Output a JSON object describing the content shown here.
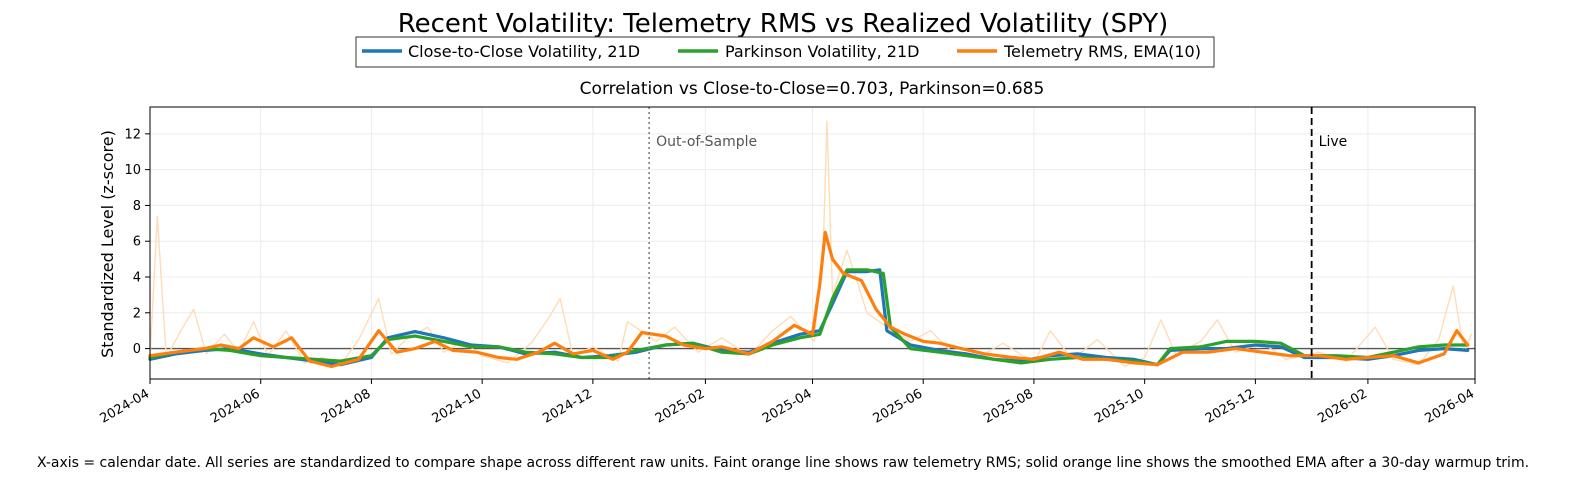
{
  "chart_data": {
    "type": "line",
    "title": "Recent Volatility: Telemetry RMS vs Realized Volatility (SPY)",
    "subtitle": "Correlation vs Close-to-Close=0.703, Parkinson=0.685",
    "ylabel": "Standardized Level (z-score)",
    "xlabel": "",
    "caption": "X-axis = calendar date. All series are standardized to compare shape across different raw units. Faint orange line shows raw telemetry RMS; solid orange line shows the smoothed EMA after a 30-day warmup trim.",
    "xlim": [
      "2024-04-01",
      "2026-04-01"
    ],
    "ylim": [
      -1.7,
      13.5
    ],
    "x_ticks": [
      "2024-04",
      "2024-06",
      "2024-08",
      "2024-10",
      "2024-12",
      "2025-02",
      "2025-04",
      "2025-06",
      "2025-08",
      "2025-10",
      "2025-12",
      "2026-02",
      "2026-04"
    ],
    "y_ticks": [
      0,
      2,
      4,
      6,
      8,
      10,
      12
    ],
    "grid": true,
    "legend_placement": "top-center",
    "legend": [
      {
        "label": "Close-to-Close Volatility, 21D",
        "color": "#1f77b4"
      },
      {
        "label": "Parkinson Volatility, 21D",
        "color": "#2ca02c"
      },
      {
        "label": "Telemetry RMS, EMA(10)",
        "color": "#ff7f0e"
      }
    ],
    "annotations": [
      {
        "label": "Out-of-Sample",
        "x": "2025-01-01",
        "style": "dotted",
        "color": "#7f7f7f"
      },
      {
        "label": "Live",
        "x": "2026-01-01",
        "style": "dashed",
        "color": "#000000"
      }
    ],
    "zero_line": 0,
    "series": [
      {
        "name": "Close-to-Close Volatility, 21D",
        "color": "#1f77b4",
        "points": [
          [
            "2024-04-01",
            -0.6
          ],
          [
            "2024-04-15",
            -0.3
          ],
          [
            "2024-05-01",
            -0.1
          ],
          [
            "2024-05-15",
            0.0
          ],
          [
            "2024-06-01",
            -0.3
          ],
          [
            "2024-06-15",
            -0.5
          ],
          [
            "2024-07-01",
            -0.7
          ],
          [
            "2024-07-15",
            -0.9
          ],
          [
            "2024-08-01",
            -0.5
          ],
          [
            "2024-08-10",
            0.6
          ],
          [
            "2024-08-25",
            0.95
          ],
          [
            "2024-09-10",
            0.6
          ],
          [
            "2024-09-25",
            0.2
          ],
          [
            "2024-10-10",
            0.1
          ],
          [
            "2024-10-25",
            -0.3
          ],
          [
            "2024-11-10",
            -0.2
          ],
          [
            "2024-11-25",
            -0.5
          ],
          [
            "2024-12-10",
            -0.4
          ],
          [
            "2024-12-25",
            -0.2
          ],
          [
            "2025-01-10",
            0.2
          ],
          [
            "2025-01-25",
            0.3
          ],
          [
            "2025-02-10",
            -0.1
          ],
          [
            "2025-02-25",
            -0.2
          ],
          [
            "2025-03-10",
            0.3
          ],
          [
            "2025-03-25",
            0.8
          ],
          [
            "2025-04-05",
            1.0
          ],
          [
            "2025-04-12",
            2.5
          ],
          [
            "2025-04-20",
            4.3
          ],
          [
            "2025-05-01",
            4.3
          ],
          [
            "2025-05-08",
            4.4
          ],
          [
            "2025-05-12",
            1.0
          ],
          [
            "2025-05-25",
            0.2
          ],
          [
            "2025-06-10",
            -0.1
          ],
          [
            "2025-06-25",
            -0.3
          ],
          [
            "2025-07-10",
            -0.6
          ],
          [
            "2025-07-25",
            -0.7
          ],
          [
            "2025-08-10",
            -0.4
          ],
          [
            "2025-08-25",
            -0.3
          ],
          [
            "2025-09-10",
            -0.5
          ],
          [
            "2025-09-25",
            -0.6
          ],
          [
            "2025-10-08",
            -0.9
          ],
          [
            "2025-10-15",
            -0.1
          ],
          [
            "2025-11-01",
            0.0
          ],
          [
            "2025-11-15",
            0.0
          ],
          [
            "2025-12-01",
            0.2
          ],
          [
            "2025-12-15",
            0.1
          ],
          [
            "2025-12-28",
            -0.5
          ],
          [
            "2026-01-15",
            -0.5
          ],
          [
            "2026-02-01",
            -0.6
          ],
          [
            "2026-02-15",
            -0.4
          ],
          [
            "2026-03-01",
            -0.1
          ],
          [
            "2026-03-15",
            0.0
          ],
          [
            "2026-03-28",
            -0.1
          ]
        ]
      },
      {
        "name": "Parkinson Volatility, 21D",
        "color": "#2ca02c",
        "points": [
          [
            "2024-04-01",
            -0.5
          ],
          [
            "2024-04-15",
            -0.2
          ],
          [
            "2024-05-01",
            0.0
          ],
          [
            "2024-05-15",
            -0.1
          ],
          [
            "2024-06-01",
            -0.4
          ],
          [
            "2024-06-15",
            -0.5
          ],
          [
            "2024-07-01",
            -0.6
          ],
          [
            "2024-07-15",
            -0.7
          ],
          [
            "2024-08-01",
            -0.4
          ],
          [
            "2024-08-10",
            0.5
          ],
          [
            "2024-08-25",
            0.7
          ],
          [
            "2024-09-10",
            0.4
          ],
          [
            "2024-09-25",
            0.1
          ],
          [
            "2024-10-10",
            0.1
          ],
          [
            "2024-10-25",
            -0.2
          ],
          [
            "2024-11-10",
            -0.3
          ],
          [
            "2024-11-25",
            -0.5
          ],
          [
            "2024-12-10",
            -0.5
          ],
          [
            "2024-12-25",
            -0.1
          ],
          [
            "2025-01-10",
            0.2
          ],
          [
            "2025-01-25",
            0.3
          ],
          [
            "2025-02-10",
            -0.2
          ],
          [
            "2025-02-25",
            -0.3
          ],
          [
            "2025-03-10",
            0.2
          ],
          [
            "2025-03-25",
            0.6
          ],
          [
            "2025-04-05",
            0.8
          ],
          [
            "2025-04-12",
            2.8
          ],
          [
            "2025-04-20",
            4.4
          ],
          [
            "2025-05-01",
            4.4
          ],
          [
            "2025-05-10",
            4.2
          ],
          [
            "2025-05-14",
            1.2
          ],
          [
            "2025-05-25",
            0.0
          ],
          [
            "2025-06-10",
            -0.2
          ],
          [
            "2025-06-25",
            -0.4
          ],
          [
            "2025-07-10",
            -0.6
          ],
          [
            "2025-07-25",
            -0.8
          ],
          [
            "2025-08-10",
            -0.6
          ],
          [
            "2025-08-25",
            -0.5
          ],
          [
            "2025-09-10",
            -0.6
          ],
          [
            "2025-09-25",
            -0.7
          ],
          [
            "2025-10-08",
            -0.9
          ],
          [
            "2025-10-15",
            0.0
          ],
          [
            "2025-11-01",
            0.1
          ],
          [
            "2025-11-15",
            0.4
          ],
          [
            "2025-12-01",
            0.4
          ],
          [
            "2025-12-15",
            0.3
          ],
          [
            "2025-12-28",
            -0.4
          ],
          [
            "2026-01-15",
            -0.4
          ],
          [
            "2026-02-01",
            -0.5
          ],
          [
            "2026-02-15",
            -0.2
          ],
          [
            "2026-03-01",
            0.1
          ],
          [
            "2026-03-15",
            0.2
          ],
          [
            "2026-03-28",
            0.2
          ]
        ]
      },
      {
        "name": "Telemetry RMS, EMA(10)",
        "color": "#ff7f0e",
        "points": [
          [
            "2024-04-01",
            -0.4
          ],
          [
            "2024-04-15",
            -0.2
          ],
          [
            "2024-05-01",
            0.0
          ],
          [
            "2024-05-10",
            0.2
          ],
          [
            "2024-05-20",
            0.0
          ],
          [
            "2024-05-28",
            0.6
          ],
          [
            "2024-06-08",
            0.1
          ],
          [
            "2024-06-18",
            0.6
          ],
          [
            "2024-06-28",
            -0.7
          ],
          [
            "2024-07-10",
            -1.0
          ],
          [
            "2024-07-25",
            -0.6
          ],
          [
            "2024-08-05",
            1.0
          ],
          [
            "2024-08-15",
            -0.2
          ],
          [
            "2024-08-25",
            0.0
          ],
          [
            "2024-09-05",
            0.4
          ],
          [
            "2024-09-15",
            -0.1
          ],
          [
            "2024-09-28",
            -0.2
          ],
          [
            "2024-10-10",
            -0.5
          ],
          [
            "2024-10-20",
            -0.6
          ],
          [
            "2024-11-01",
            -0.2
          ],
          [
            "2024-11-10",
            0.3
          ],
          [
            "2024-11-20",
            -0.3
          ],
          [
            "2024-12-01",
            -0.1
          ],
          [
            "2024-12-12",
            -0.6
          ],
          [
            "2024-12-20",
            -0.2
          ],
          [
            "2024-12-28",
            0.9
          ],
          [
            "2025-01-10",
            0.7
          ],
          [
            "2025-01-20",
            0.2
          ],
          [
            "2025-02-01",
            0.0
          ],
          [
            "2025-02-10",
            0.1
          ],
          [
            "2025-02-25",
            -0.3
          ],
          [
            "2025-03-10",
            0.4
          ],
          [
            "2025-03-22",
            1.3
          ],
          [
            "2025-04-01",
            0.8
          ],
          [
            "2025-04-05",
            3.6
          ],
          [
            "2025-04-08",
            6.5
          ],
          [
            "2025-04-12",
            5.0
          ],
          [
            "2025-04-18",
            4.2
          ],
          [
            "2025-04-28",
            3.8
          ],
          [
            "2025-05-06",
            2.2
          ],
          [
            "2025-05-14",
            1.2
          ],
          [
            "2025-05-22",
            0.8
          ],
          [
            "2025-06-01",
            0.4
          ],
          [
            "2025-06-10",
            0.3
          ],
          [
            "2025-06-22",
            0.0
          ],
          [
            "2025-07-05",
            -0.3
          ],
          [
            "2025-07-20",
            -0.5
          ],
          [
            "2025-08-01",
            -0.6
          ],
          [
            "2025-08-15",
            -0.2
          ],
          [
            "2025-08-28",
            -0.6
          ],
          [
            "2025-09-10",
            -0.6
          ],
          [
            "2025-09-25",
            -0.8
          ],
          [
            "2025-10-08",
            -0.9
          ],
          [
            "2025-10-22",
            -0.2
          ],
          [
            "2025-11-05",
            -0.2
          ],
          [
            "2025-11-20",
            0.0
          ],
          [
            "2025-12-05",
            -0.2
          ],
          [
            "2025-12-20",
            -0.4
          ],
          [
            "2026-01-05",
            -0.4
          ],
          [
            "2026-01-20",
            -0.6
          ],
          [
            "2026-02-01",
            -0.5
          ],
          [
            "2026-02-15",
            -0.4
          ],
          [
            "2026-03-01",
            -0.8
          ],
          [
            "2026-03-15",
            -0.3
          ],
          [
            "2026-03-22",
            1.0
          ],
          [
            "2026-03-28",
            0.2
          ]
        ]
      },
      {
        "name": "",
        "style": "faint",
        "color": "#ffdcb8",
        "points": [
          [
            "2024-04-01",
            -0.5
          ],
          [
            "2024-04-05",
            7.4
          ],
          [
            "2024-04-10",
            -0.5
          ],
          [
            "2024-04-18",
            1.0
          ],
          [
            "2024-04-25",
            2.2
          ],
          [
            "2024-05-02",
            -0.3
          ],
          [
            "2024-05-12",
            0.8
          ],
          [
            "2024-05-20",
            -0.2
          ],
          [
            "2024-05-28",
            1.5
          ],
          [
            "2024-06-05",
            -0.4
          ],
          [
            "2024-06-15",
            1.0
          ],
          [
            "2024-06-25",
            -0.8
          ],
          [
            "2024-07-05",
            -0.5
          ],
          [
            "2024-07-15",
            -0.9
          ],
          [
            "2024-07-25",
            0.5
          ],
          [
            "2024-08-05",
            2.8
          ],
          [
            "2024-08-12",
            -0.3
          ],
          [
            "2024-08-20",
            0.5
          ],
          [
            "2024-09-01",
            1.2
          ],
          [
            "2024-09-10",
            -0.2
          ],
          [
            "2024-09-20",
            0.4
          ],
          [
            "2024-10-01",
            -0.4
          ],
          [
            "2024-10-15",
            -0.8
          ],
          [
            "2024-10-28",
            0.3
          ],
          [
            "2024-11-06",
            1.6
          ],
          [
            "2024-11-13",
            2.8
          ],
          [
            "2024-11-20",
            -0.4
          ],
          [
            "2024-12-01",
            0.1
          ],
          [
            "2024-12-15",
            -0.7
          ],
          [
            "2024-12-20",
            1.5
          ],
          [
            "2025-01-05",
            0.4
          ],
          [
            "2025-01-15",
            1.2
          ],
          [
            "2025-01-28",
            -0.2
          ],
          [
            "2025-02-10",
            0.6
          ],
          [
            "2025-02-25",
            -0.4
          ],
          [
            "2025-03-10",
            1.0
          ],
          [
            "2025-03-20",
            1.8
          ],
          [
            "2025-04-02",
            0.4
          ],
          [
            "2025-04-07",
            6.0
          ],
          [
            "2025-04-09",
            12.7
          ],
          [
            "2025-04-12",
            3.0
          ],
          [
            "2025-04-20",
            5.5
          ],
          [
            "2025-05-01",
            2.0
          ],
          [
            "2025-05-12",
            1.2
          ],
          [
            "2025-05-25",
            0.4
          ],
          [
            "2025-06-05",
            1.0
          ],
          [
            "2025-06-18",
            -0.3
          ],
          [
            "2025-07-01",
            -0.5
          ],
          [
            "2025-07-15",
            0.3
          ],
          [
            "2025-08-01",
            -0.8
          ],
          [
            "2025-08-10",
            1.0
          ],
          [
            "2025-08-22",
            -0.6
          ],
          [
            "2025-09-05",
            0.5
          ],
          [
            "2025-09-20",
            -1.0
          ],
          [
            "2025-10-01",
            -0.5
          ],
          [
            "2025-10-10",
            1.6
          ],
          [
            "2025-10-18",
            -0.3
          ],
          [
            "2025-11-01",
            0.4
          ],
          [
            "2025-11-10",
            1.6
          ],
          [
            "2025-11-20",
            -0.2
          ],
          [
            "2025-12-05",
            0.3
          ],
          [
            "2025-12-18",
            -0.6
          ],
          [
            "2026-01-05",
            -0.2
          ],
          [
            "2026-01-20",
            -0.7
          ],
          [
            "2026-02-05",
            1.2
          ],
          [
            "2026-02-15",
            -0.6
          ],
          [
            "2026-03-01",
            -0.9
          ],
          [
            "2026-03-12",
            0.5
          ],
          [
            "2026-03-20",
            3.5
          ],
          [
            "2026-03-26",
            -0.2
          ],
          [
            "2026-03-30",
            0.8
          ]
        ]
      }
    ]
  }
}
